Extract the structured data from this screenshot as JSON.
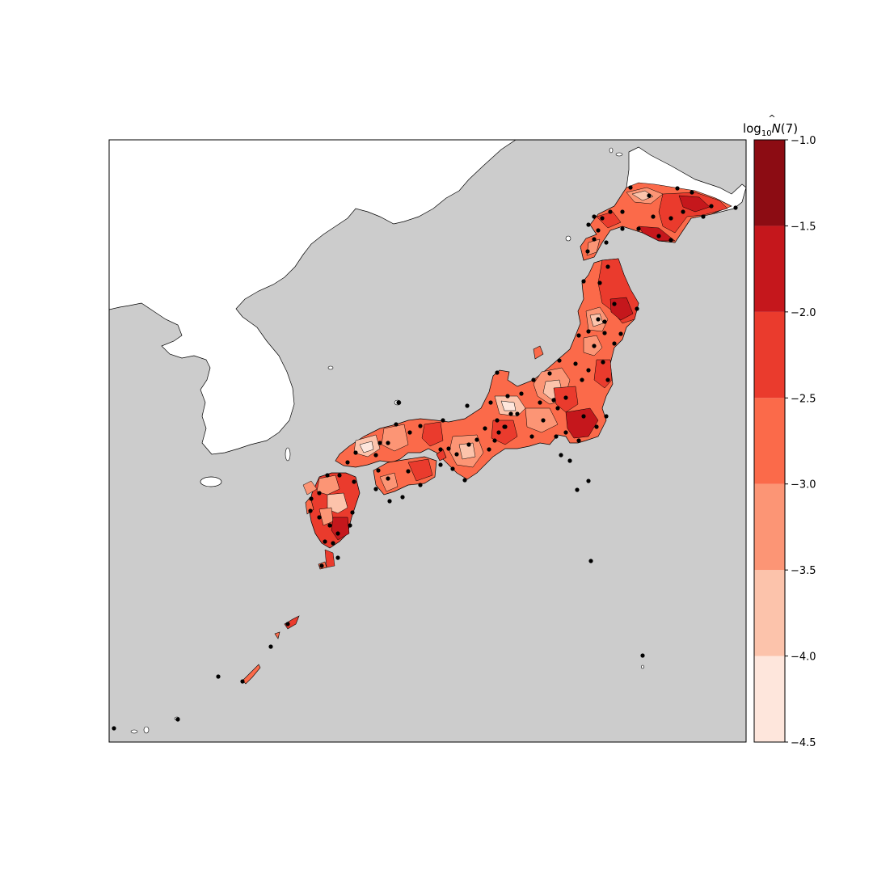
{
  "colorbar": {
    "title_base": "log",
    "title_sub": "10",
    "title_var": "N",
    "title_hat": "^",
    "title_arg": "(7)",
    "ticks": [
      "−1.0",
      "−1.5",
      "−2.0",
      "−2.5",
      "−3.0",
      "−3.5",
      "−4.0",
      "−4.5"
    ],
    "levels": [
      -1.0,
      -1.5,
      -2.0,
      -2.5,
      -3.0,
      -3.5,
      -4.0,
      -4.5
    ],
    "colors": [
      "#fee6dc",
      "#fcc3ab",
      "#fc9575",
      "#fb6a4a",
      "#ea3b2d",
      "#c5171c",
      "#8c0c13"
    ]
  },
  "map": {
    "ocean_color": "#cccccc",
    "land_color": "#ffffff",
    "station_color": "#000000",
    "region": "Japan"
  }
}
